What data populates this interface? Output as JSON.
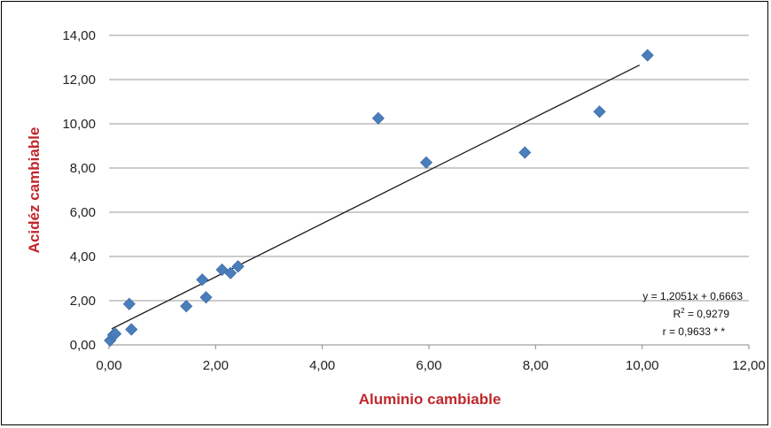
{
  "chart_data": {
    "type": "scatter",
    "xlabel": "Aluminio cambiable",
    "ylabel": "Acidéz cambiable",
    "xlim": [
      0,
      12
    ],
    "ylim": [
      0,
      14
    ],
    "x_ticks": [
      "0,00",
      "2,00",
      "4,00",
      "6,00",
      "8,00",
      "10,00",
      "12,00"
    ],
    "y_ticks": [
      "0,00",
      "2,00",
      "4,00",
      "6,00",
      "8,00",
      "10,00",
      "12,00",
      "14,00"
    ],
    "grid": "horizontal",
    "points": [
      {
        "x": 0.02,
        "y": 0.2
      },
      {
        "x": 0.08,
        "y": 0.45
      },
      {
        "x": 0.12,
        "y": 0.5
      },
      {
        "x": 0.38,
        "y": 1.85
      },
      {
        "x": 0.42,
        "y": 0.7
      },
      {
        "x": 1.45,
        "y": 1.75
      },
      {
        "x": 1.75,
        "y": 2.95
      },
      {
        "x": 1.82,
        "y": 2.15
      },
      {
        "x": 2.12,
        "y": 3.4
      },
      {
        "x": 2.28,
        "y": 3.25
      },
      {
        "x": 2.42,
        "y": 3.55
      },
      {
        "x": 5.05,
        "y": 10.25
      },
      {
        "x": 5.95,
        "y": 8.25
      },
      {
        "x": 7.8,
        "y": 8.7
      },
      {
        "x": 9.2,
        "y": 10.55
      },
      {
        "x": 10.1,
        "y": 13.1
      }
    ],
    "trendline": {
      "slope": 1.2051,
      "intercept": 0.6663,
      "x_range": [
        0.05,
        9.95
      ]
    },
    "annotations": {
      "equation": "y = 1,2051x + 0,6663",
      "r2_label": "R",
      "r2_sup": "2",
      "r2_value": " = 0,9279",
      "r": "r = 0,9633 * *"
    },
    "colors": {
      "marker": "#4a7ebb",
      "trendline": "#1a1a1a",
      "axis_title": "#c0282d",
      "grid": "#9a9a9a"
    }
  }
}
